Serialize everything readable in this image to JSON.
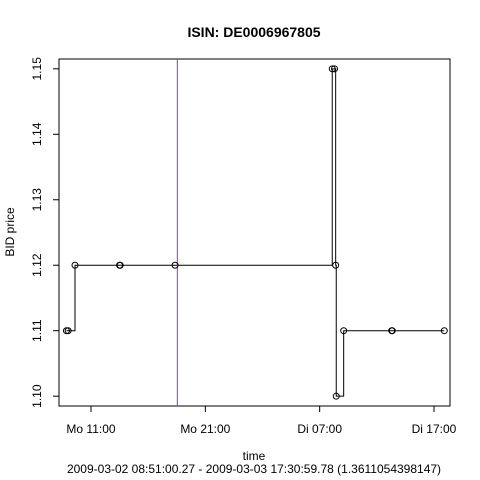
{
  "chart_data": {
    "type": "line",
    "title": "ISIN: DE0006967805",
    "xlabel": "time",
    "ylabel": "BID price",
    "subtitle": "2009-03-02 08:51:00.27 - 2009-03-03 17:30:59.78 (1.3611054398147)",
    "x_tick_labels": [
      "Mo 11:00",
      "Mo 21:00",
      "Di 07:00",
      "Di 17:00"
    ],
    "y_tick_labels": [
      "1.10",
      "1.11",
      "1.12",
      "1.13",
      "1.14",
      "1.15"
    ],
    "x_ticks_hours": [
      11,
      21,
      31,
      41
    ],
    "y_ticks": [
      1.1,
      1.11,
      1.12,
      1.13,
      1.14,
      1.15
    ],
    "x_unit": "hours since 2009-03-02 00:00",
    "xlim": [
      8.2,
      42.4
    ],
    "ylim": [
      1.0985,
      1.1515
    ],
    "step": true,
    "points": [
      {
        "x": 8.85,
        "y": 1.11
      },
      {
        "x": 9.0,
        "y": 1.11
      },
      {
        "x": 9.6,
        "y": 1.12
      },
      {
        "x": 13.5,
        "y": 1.12
      },
      {
        "x": 13.55,
        "y": 1.12
      },
      {
        "x": 18.35,
        "y": 1.12
      },
      {
        "x": 32.1,
        "y": 1.15
      },
      {
        "x": 32.3,
        "y": 1.15
      },
      {
        "x": 32.4,
        "y": 1.12
      },
      {
        "x": 32.45,
        "y": 1.1
      },
      {
        "x": 33.1,
        "y": 1.11
      },
      {
        "x": 37.3,
        "y": 1.11
      },
      {
        "x": 37.35,
        "y": 1.11
      },
      {
        "x": 41.9,
        "y": 1.11
      }
    ],
    "vline_x": 18.55,
    "vline_color": "#9b30d9",
    "line_color": "#000000",
    "grid": false,
    "legend": "none"
  }
}
